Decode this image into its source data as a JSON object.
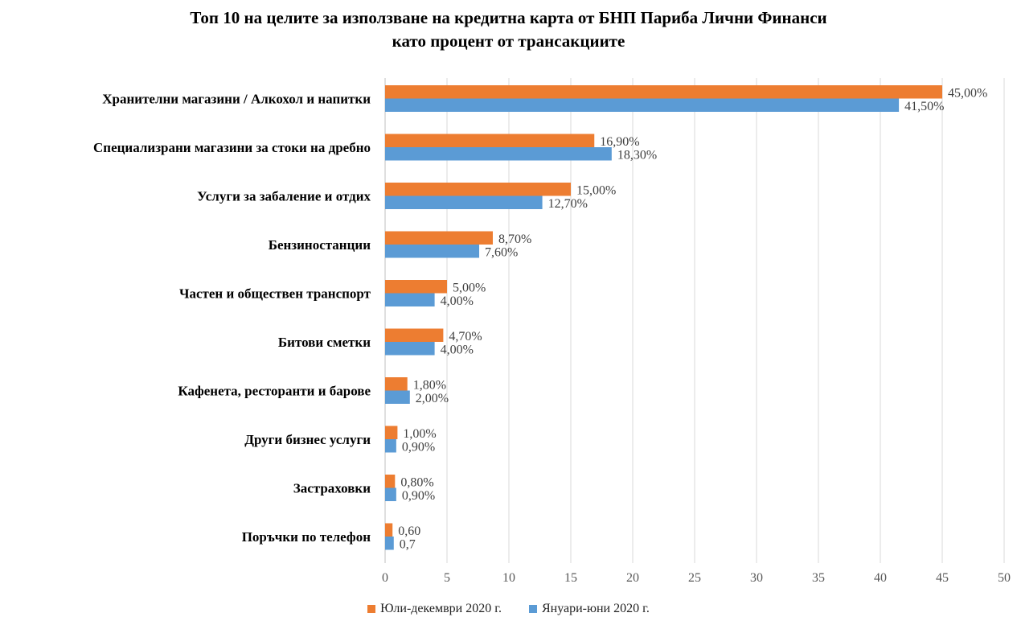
{
  "chart_data": {
    "type": "bar",
    "orientation": "horizontal",
    "title_lines": [
      "Топ 10 на целите за използване на кредитна карта от БНП Париба Лични Финанси",
      "като процент от трансакциите"
    ],
    "categories": [
      "Хранителни магазини / Алкохол и напитки",
      "Специализрани магазини за стоки на дребно",
      "Услуги за забаление и отдих",
      "Бензиностанции",
      "Частен и обществен транспорт",
      "Битови сметки",
      "Кафенета, ресторанти и барове",
      "Други бизнес услуги",
      "Застраховки",
      "Поръчки по телефон"
    ],
    "series": [
      {
        "name": "Юли-декември 2020 г.",
        "color": "#ED7D31",
        "values": [
          45,
          16.9,
          15,
          8.7,
          5,
          4.7,
          1.8,
          1,
          0.8,
          0.6
        ],
        "labels": [
          "45,00%",
          "16,90%",
          "15,00%",
          "8,70%",
          "5,00%",
          "4,70%",
          "1,80%",
          "1,00%",
          "0,80%",
          "0,60"
        ]
      },
      {
        "name": "Януари-юни 2020 г.",
        "color": "#5B9BD5",
        "values": [
          41.5,
          18.3,
          12.7,
          7.6,
          4,
          4,
          2,
          0.9,
          0.9,
          0.7
        ],
        "labels": [
          "41,50%",
          "18,30%",
          "12,70%",
          "7,60%",
          "4,00%",
          "4,00%",
          "2,00%",
          "0,90%",
          "0,90%",
          "0,7"
        ]
      }
    ],
    "xlim": [
      0,
      50
    ],
    "x_ticks": [
      0,
      5,
      10,
      15,
      20,
      25,
      30,
      35,
      40,
      45,
      50
    ],
    "x_tick_labels": [
      "0",
      "5",
      "10",
      "15",
      "20",
      "25",
      "30",
      "35",
      "40",
      "45",
      "50"
    ],
    "grid": "vertical",
    "legend_position": "bottom"
  }
}
